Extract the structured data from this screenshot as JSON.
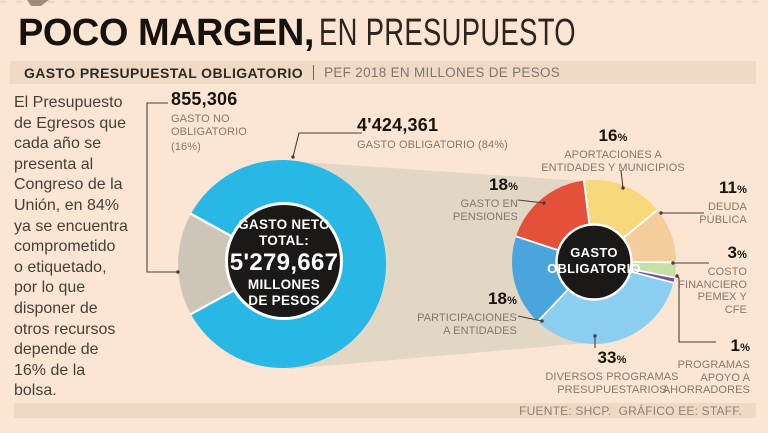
{
  "header": {
    "title_bold": "POCO MARGEN,",
    "title_light": "EN PRESUPUESTO",
    "kicker": "GASTO PRESUPUESTAL OBLIGATORIO",
    "kicker_sub": "PEF 2018 EN MILLONES DE PESOS"
  },
  "intro": {
    "text": "El Presupuesto\nde Egresos que\ncada año se\npresenta al\nCongreso de la\nUnión, en 84%\nya se encuentra\ncomprometido\no etiquetado,\npor lo que\ndisponer de\notros recursos\ndepende de\n16% de la\nbolsa."
  },
  "chart_data": [
    {
      "type": "pie",
      "name": "gasto-neto-total",
      "title": "GASTO NETO TOTAL",
      "center": {
        "l1": "GASTO NETO",
        "l2": "TOTAL:",
        "value": "5'279,667",
        "l4": "MILLONES",
        "l5": "DE PESOS"
      },
      "slices": [
        {
          "label": "GASTO OBLIGATORIO",
          "value": "4'424,361",
          "pct": 84,
          "color": "#29B8E6"
        },
        {
          "label": "GASTO NO OBLIGATORIO",
          "value": "855,306",
          "pct": 16,
          "color": "#CDC5B8"
        }
      ]
    },
    {
      "type": "pie",
      "name": "gasto-obligatorio-breakdown",
      "center": {
        "l1": "GASTO",
        "l2": "OBLIGATORIO"
      },
      "slices": [
        {
          "label": "APORTACIONES A ENTIDADES Y MUNICIPIOS",
          "pct": 16,
          "color": "#F9D77B"
        },
        {
          "label": "DEUDA PÚBLICA",
          "pct": 11,
          "color": "#F5CD9C"
        },
        {
          "label": "COSTO FINANCIERO PEMEX Y CFE",
          "pct": 3,
          "color": "#C6E0A5"
        },
        {
          "label": "PROGRAMAS APOYO A AHORRADORES",
          "pct": 1,
          "color": "#6C559F"
        },
        {
          "label": "DIVERSOS PROGRAMAS PRESUPUESTARIOS",
          "pct": 33,
          "color": "#8BCEF0"
        },
        {
          "label": "PARTICIPACIONES A ENTIDADES",
          "pct": 18,
          "color": "#49A5DB"
        },
        {
          "label": "GASTO EN PENSIONES",
          "pct": 18,
          "color": "#E5503A"
        }
      ]
    }
  ],
  "callouts": {
    "no_obligatorio": {
      "value": "855,306",
      "lines": [
        "GASTO NO",
        "OBLIGATORIO",
        "(16%)"
      ]
    },
    "obligatorio": {
      "value": "4'424,361",
      "lines": [
        "GASTO OBLIGATORIO (84%)"
      ]
    },
    "aportaciones": {
      "num": "16",
      "lines": [
        "APORTACIONES A",
        "ENTIDADES Y MUNICIPIOS"
      ]
    },
    "deuda": {
      "num": "11",
      "lines": [
        "DEUDA",
        "PÚBLICA"
      ]
    },
    "costo": {
      "num": "3",
      "lines": [
        "COSTO",
        "FINANCIERO",
        "PEMEX Y",
        "CFE"
      ]
    },
    "ahorradores": {
      "num": "1",
      "lines": [
        "PROGRAMAS",
        "APOYO A",
        "AHORRADORES"
      ]
    },
    "diversos": {
      "num": "33",
      "lines": [
        "DIVERSOS PROGRAMAS",
        "PRESUPUESTARIOS"
      ]
    },
    "participaciones": {
      "num": "18",
      "lines": [
        "PARTICIPACIONES",
        "A ENTIDADES"
      ]
    },
    "pensiones": {
      "num": "18",
      "lines": [
        "GASTO EN",
        "PENSIONES"
      ]
    }
  },
  "misc": {
    "percent": "%"
  },
  "footer": {
    "source": "FUENTE: SHCP.  GRÁFICO EE: STAFF."
  },
  "colors": {
    "background": "#FCE6D3",
    "bar": "#F0DAC6",
    "funnel": "#E2D6C4",
    "disc": "#1B1918",
    "line": "#45403a"
  }
}
